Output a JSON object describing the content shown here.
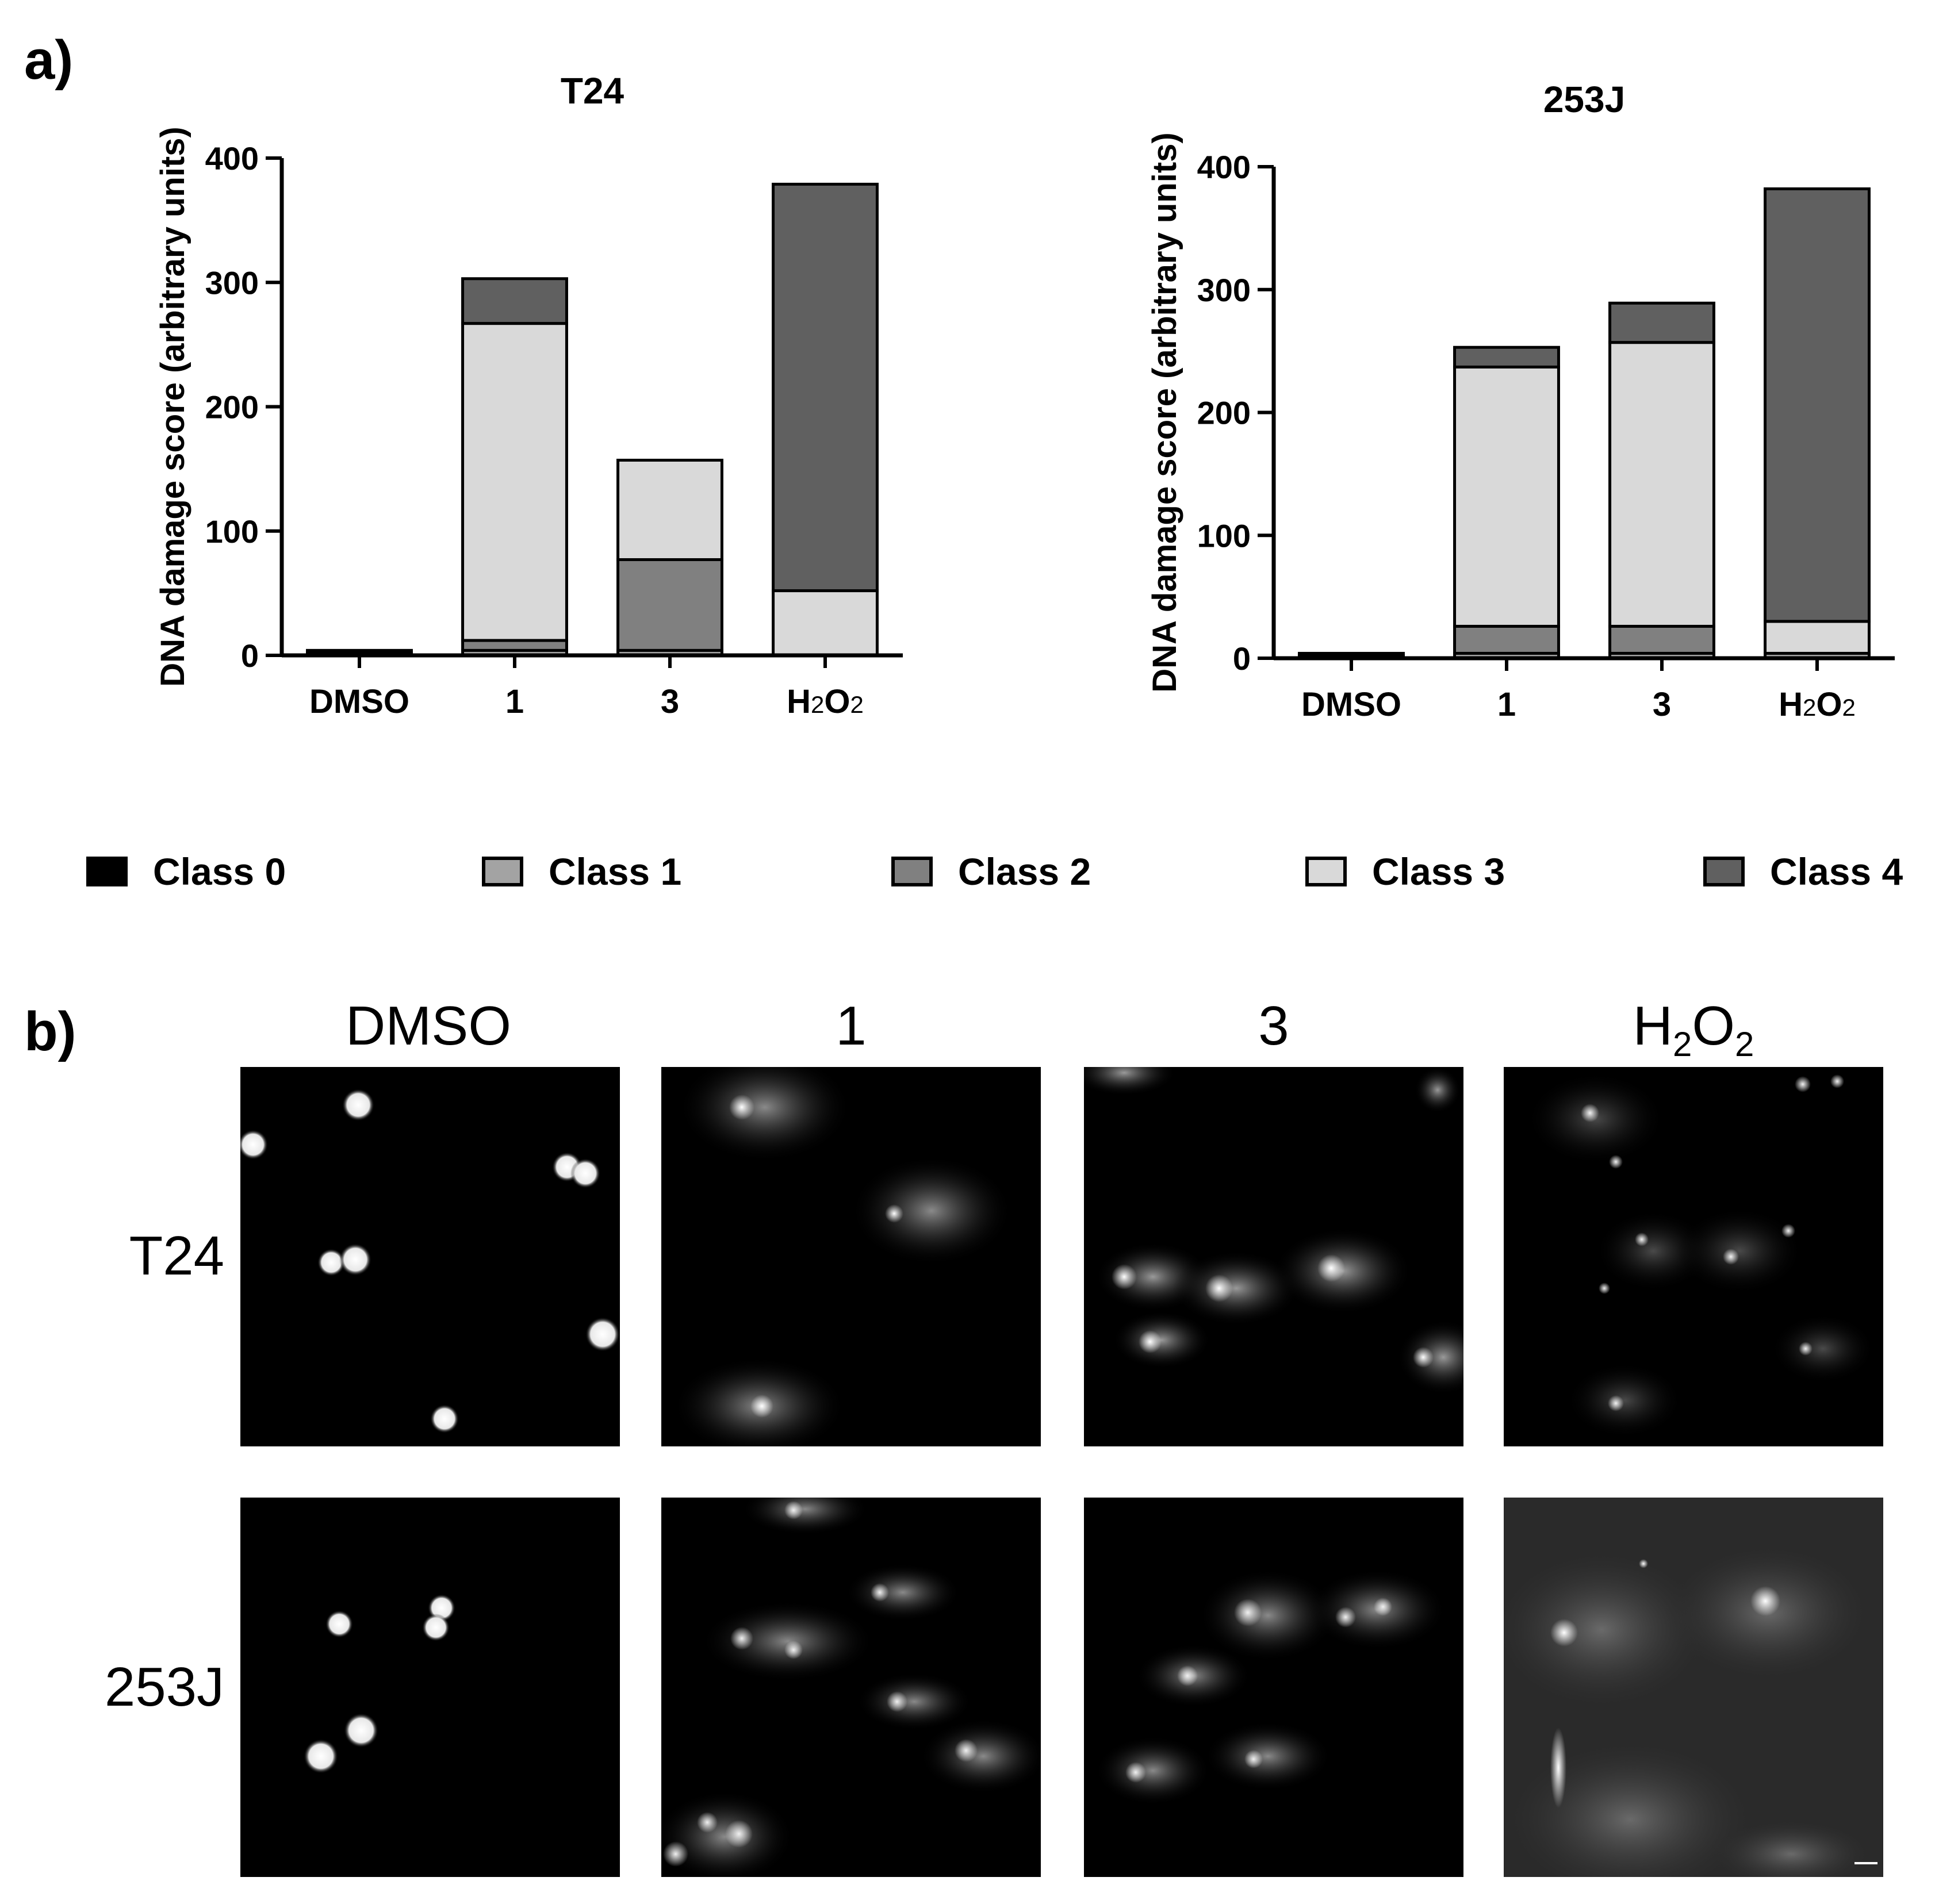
{
  "panel_a_label": "a)",
  "panel_b_label": "b)",
  "chart_data": [
    {
      "type": "bar",
      "stacked": true,
      "title": "T24",
      "xlabel": "",
      "ylabel": "DNA damage score (arbitrary units)",
      "categories": [
        "DMSO",
        "1",
        "3",
        "H2O2"
      ],
      "ylim": [
        0,
        400
      ],
      "yticks": [
        0,
        100,
        200,
        300,
        400
      ],
      "series": [
        {
          "name": "Class 0",
          "values": [
            2,
            0,
            0,
            0
          ]
        },
        {
          "name": "Class 1",
          "values": [
            2,
            4,
            4,
            0
          ]
        },
        {
          "name": "Class 2",
          "values": [
            0,
            8,
            73,
            0
          ]
        },
        {
          "name": "Class 3",
          "values": [
            0,
            255,
            80,
            52
          ]
        },
        {
          "name": "Class 4",
          "values": [
            0,
            36,
            0,
            327
          ]
        }
      ]
    },
    {
      "type": "bar",
      "stacked": true,
      "title": "253J",
      "xlabel": "",
      "ylabel": "DNA damage score (arbitrary units)",
      "categories": [
        "DMSO",
        "1",
        "3",
        "H2O2"
      ],
      "ylim": [
        0,
        400
      ],
      "yticks": [
        0,
        100,
        200,
        300,
        400
      ],
      "series": [
        {
          "name": "Class 0",
          "values": [
            2,
            0,
            0,
            0
          ]
        },
        {
          "name": "Class 1",
          "values": [
            2,
            4,
            4,
            4
          ]
        },
        {
          "name": "Class 2",
          "values": [
            0,
            22,
            22,
            0
          ]
        },
        {
          "name": "Class 3",
          "values": [
            0,
            211,
            231,
            26
          ]
        },
        {
          "name": "Class 4",
          "values": [
            0,
            16,
            32,
            352
          ]
        }
      ]
    }
  ],
  "legend": {
    "position": "bottom",
    "items": [
      {
        "label": "Class 0",
        "color": "#000000"
      },
      {
        "label": "Class 1",
        "color": "#a3a3a3"
      },
      {
        "label": "Class 2",
        "color": "#808080"
      },
      {
        "label": "Class 3",
        "color": "#d9d9d9"
      },
      {
        "label": "Class 4",
        "color": "#606060"
      }
    ]
  },
  "panel_b": {
    "columns": [
      "DMSO",
      "1",
      "3",
      "H2O2"
    ],
    "rows": [
      "T24",
      "253J"
    ]
  }
}
